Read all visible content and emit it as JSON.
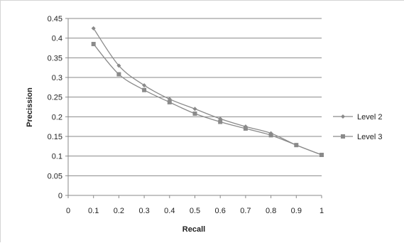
{
  "chart_data": {
    "type": "line",
    "title": "",
    "xlabel": "Recall",
    "ylabel": "Precission",
    "xlim": [
      0,
      1
    ],
    "ylim": [
      0,
      0.45
    ],
    "x_ticks": [
      "0",
      "0.1",
      "0.2",
      "0.3",
      "0.4",
      "0.5",
      "0.6",
      "0.7",
      "0.8",
      "0.9",
      "1"
    ],
    "y_ticks": [
      "0",
      "0.05",
      "0.1",
      "0.15",
      "0.2",
      "0.25",
      "0.3",
      "0.35",
      "0.4",
      "0.45"
    ],
    "grid": "horizontal",
    "legend_position": "right",
    "series": [
      {
        "name": "Level 2",
        "marker": "diamond",
        "color": "#8a8a8a",
        "x": [
          0.1,
          0.2,
          0.3,
          0.4,
          0.5,
          0.6,
          0.7,
          0.8,
          0.9,
          1.0
        ],
        "y": [
          0.425,
          0.33,
          0.28,
          0.245,
          0.22,
          0.195,
          0.175,
          0.158,
          0.128,
          0.103
        ]
      },
      {
        "name": "Level 3",
        "marker": "square",
        "color": "#8a8a8a",
        "x": [
          0.1,
          0.2,
          0.3,
          0.4,
          0.5,
          0.6,
          0.7,
          0.8,
          0.9,
          1.0
        ],
        "y": [
          0.385,
          0.308,
          0.268,
          0.237,
          0.208,
          0.187,
          0.17,
          0.153,
          0.128,
          0.103
        ]
      }
    ]
  }
}
